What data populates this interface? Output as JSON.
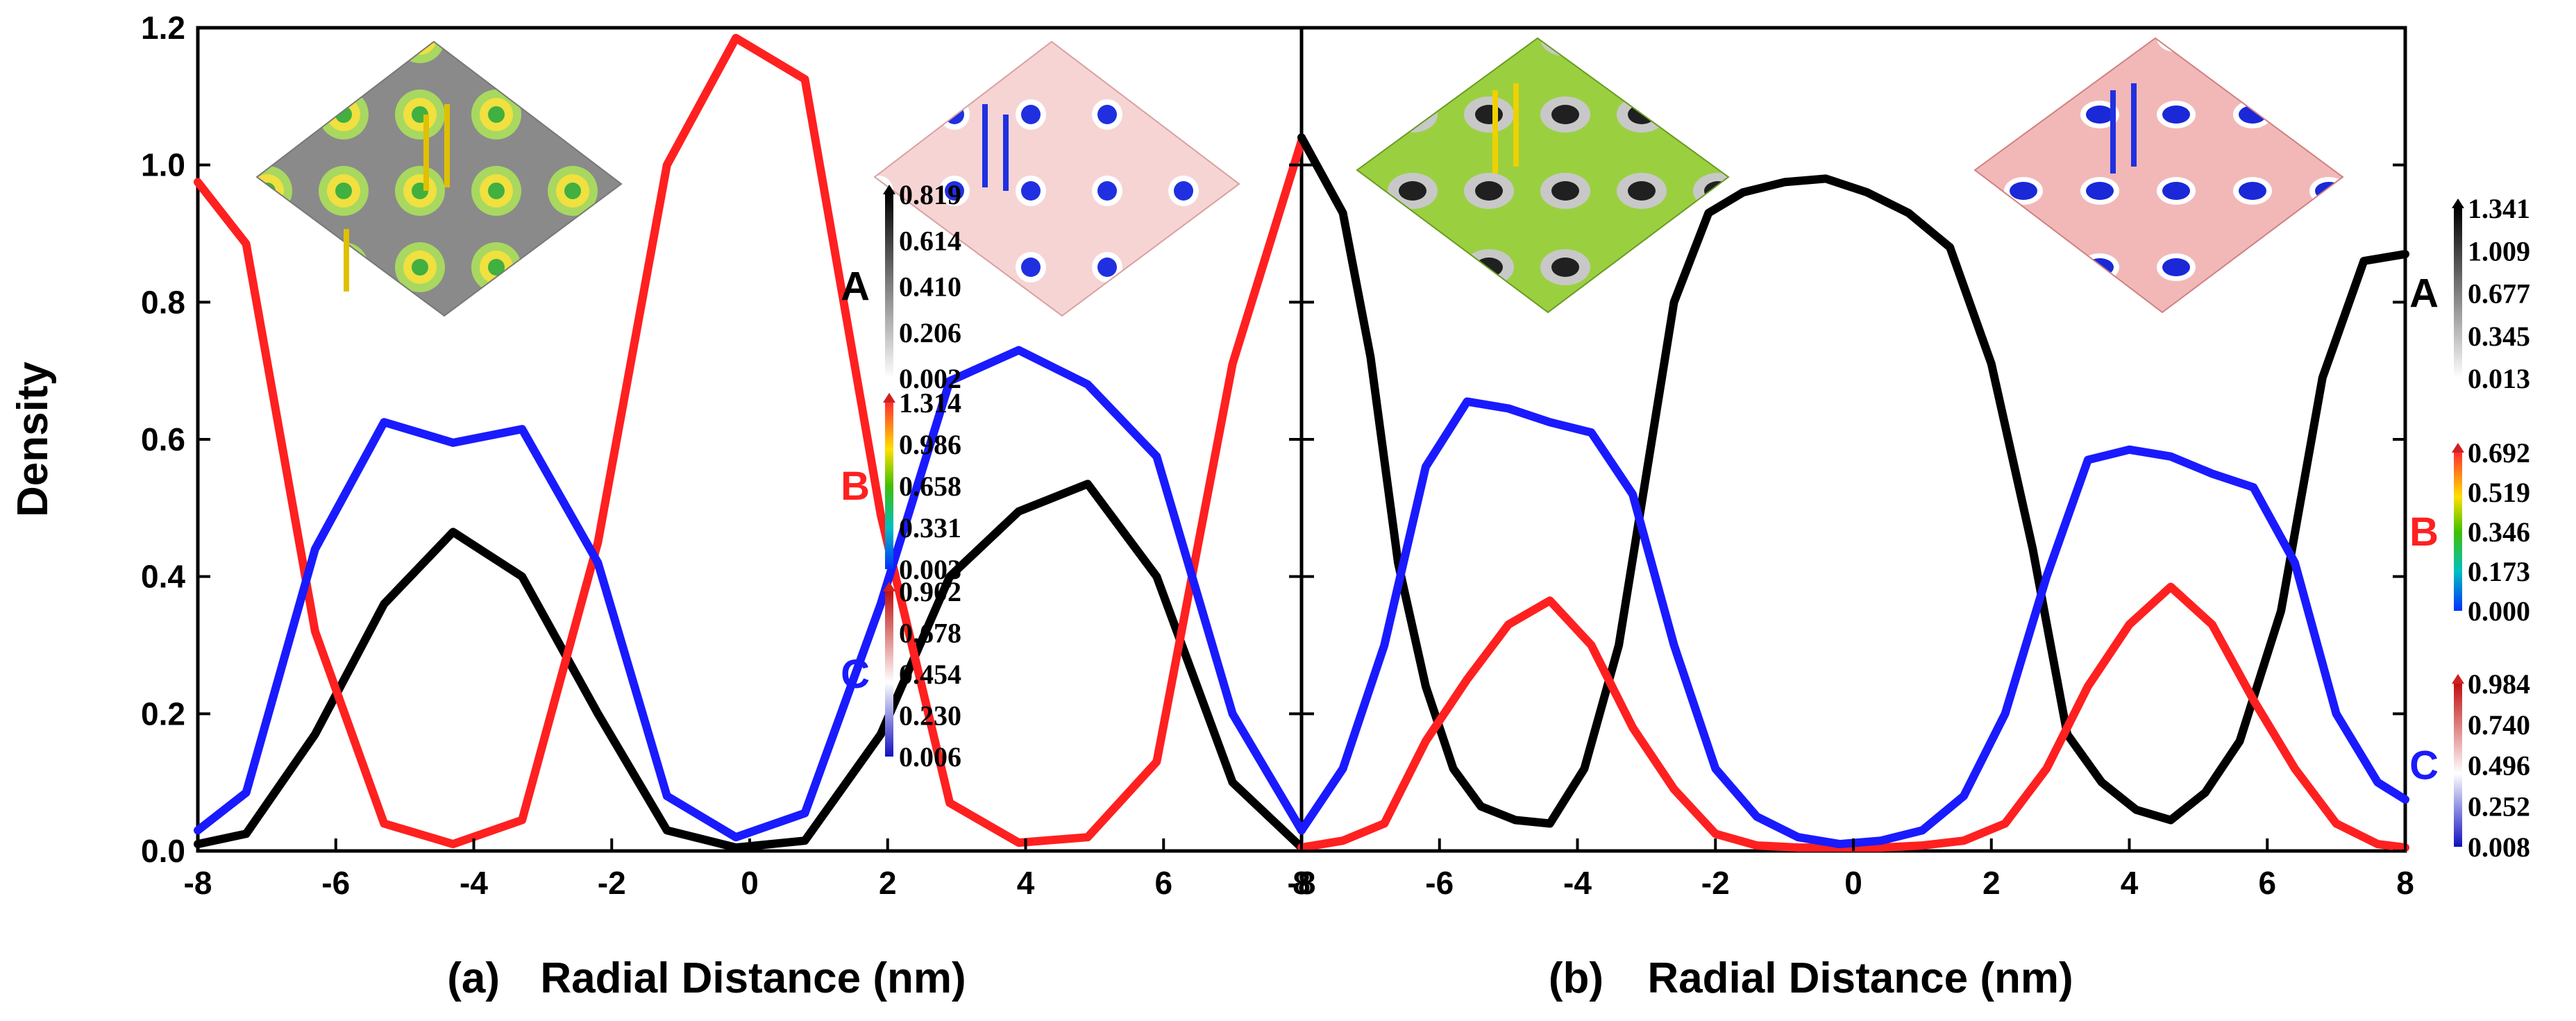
{
  "colors": {
    "A": "#000000",
    "B": "#ff2020",
    "C": "#1a1aff"
  },
  "y_axis_title": "Density",
  "chart_data": [
    {
      "type": "line",
      "panel_label": "(a)",
      "xlabel": "Radial Distance (nm)",
      "ylabel": "Density",
      "xlim": [
        -8,
        8
      ],
      "ylim": [
        0,
        1.2
      ],
      "xticks": [
        -8,
        -6,
        -4,
        -2,
        0,
        2,
        4,
        6,
        8
      ],
      "yticks": [
        "0.0",
        "0.2",
        "0.4",
        "0.6",
        "0.8",
        "1.0",
        "1.2"
      ],
      "series": [
        {
          "name": "A",
          "x": [
            -8,
            -7.3,
            -6.3,
            -5.3,
            -4.3,
            -3.3,
            -2.2,
            -1.2,
            -0.2,
            0.8,
            1.9,
            2.9,
            3.9,
            4.9,
            5.9,
            7.0,
            8.0
          ],
          "y": [
            0.01,
            0.025,
            0.17,
            0.36,
            0.465,
            0.4,
            0.2,
            0.03,
            0.005,
            0.015,
            0.17,
            0.4,
            0.495,
            0.535,
            0.4,
            0.1,
            0.005
          ]
        },
        {
          "name": "B",
          "x": [
            -8,
            -7.3,
            -6.3,
            -5.3,
            -4.3,
            -3.3,
            -2.2,
            -1.2,
            -0.2,
            0.8,
            1.9,
            2.9,
            3.9,
            4.9,
            5.9,
            7.0,
            8.0
          ],
          "y": [
            0.975,
            0.885,
            0.32,
            0.04,
            0.01,
            0.045,
            0.45,
            1.0,
            1.185,
            1.125,
            0.49,
            0.07,
            0.012,
            0.02,
            0.13,
            0.71,
            1.035
          ]
        },
        {
          "name": "C",
          "x": [
            -8,
            -7.3,
            -6.3,
            -5.3,
            -4.3,
            -3.3,
            -2.2,
            -1.2,
            -0.2,
            0.8,
            1.9,
            2.9,
            3.9,
            4.9,
            5.9,
            7.0,
            8.0
          ],
          "y": [
            0.03,
            0.085,
            0.44,
            0.625,
            0.595,
            0.615,
            0.42,
            0.08,
            0.02,
            0.055,
            0.36,
            0.685,
            0.73,
            0.68,
            0.575,
            0.2,
            0.03
          ]
        }
      ],
      "colorbars": [
        {
          "name": "A",
          "ticks": [
            "0.819",
            "0.614",
            "0.410",
            "0.206",
            "0.002"
          ]
        },
        {
          "name": "B",
          "ticks": [
            "1.314",
            "0.986",
            "0.658",
            "0.331",
            "0.003"
          ]
        },
        {
          "name": "C",
          "ticks": [
            "0.902",
            "0.678",
            "0.454",
            "0.230",
            "0.006"
          ]
        }
      ]
    },
    {
      "type": "line",
      "panel_label": "(b)",
      "xlabel": "Radial Distance (nm)",
      "ylabel": "",
      "xlim": [
        -8,
        8
      ],
      "ylim": [
        0,
        1.2
      ],
      "xticks": [
        -8,
        -6,
        -4,
        -2,
        0,
        2,
        4,
        6,
        8
      ],
      "series": [
        {
          "name": "A",
          "x": [
            -8,
            -7.4,
            -7.0,
            -6.6,
            -6.2,
            -5.8,
            -5.4,
            -4.9,
            -4.4,
            -3.9,
            -3.4,
            -3.0,
            -2.6,
            -2.1,
            -1.6,
            -1.0,
            -0.4,
            0.2,
            0.8,
            1.4,
            2.0,
            2.6,
            3.1,
            3.6,
            4.1,
            4.6,
            5.1,
            5.6,
            6.2,
            6.8,
            7.4,
            8.0
          ],
          "y": [
            1.04,
            0.93,
            0.72,
            0.42,
            0.24,
            0.12,
            0.065,
            0.045,
            0.04,
            0.12,
            0.3,
            0.55,
            0.8,
            0.93,
            0.96,
            0.975,
            0.98,
            0.96,
            0.93,
            0.88,
            0.71,
            0.44,
            0.17,
            0.1,
            0.06,
            0.045,
            0.085,
            0.16,
            0.35,
            0.69,
            0.86,
            0.87
          ]
        },
        {
          "name": "B",
          "x": [
            -8,
            -7.4,
            -6.8,
            -6.2,
            -5.6,
            -5.0,
            -4.4,
            -3.8,
            -3.2,
            -2.6,
            -2.0,
            -1.4,
            -0.8,
            -0.2,
            0.4,
            1.0,
            1.6,
            2.2,
            2.8,
            3.4,
            4.0,
            4.6,
            5.2,
            5.8,
            6.4,
            7.0,
            7.6,
            8.0
          ],
          "y": [
            0.005,
            0.015,
            0.04,
            0.16,
            0.25,
            0.33,
            0.365,
            0.3,
            0.18,
            0.09,
            0.025,
            0.008,
            0.005,
            0.005,
            0.005,
            0.008,
            0.015,
            0.04,
            0.12,
            0.24,
            0.33,
            0.385,
            0.33,
            0.22,
            0.12,
            0.04,
            0.01,
            0.005
          ]
        },
        {
          "name": "C",
          "x": [
            -8,
            -7.4,
            -6.8,
            -6.2,
            -5.6,
            -5.0,
            -4.4,
            -3.8,
            -3.2,
            -2.6,
            -2.0,
            -1.4,
            -0.8,
            -0.2,
            0.4,
            1.0,
            1.6,
            2.2,
            2.8,
            3.4,
            4.0,
            4.6,
            5.2,
            5.8,
            6.4,
            7.0,
            7.6,
            8.0
          ],
          "y": [
            0.03,
            0.12,
            0.3,
            0.56,
            0.655,
            0.645,
            0.625,
            0.61,
            0.52,
            0.3,
            0.12,
            0.05,
            0.02,
            0.01,
            0.015,
            0.03,
            0.08,
            0.2,
            0.4,
            0.57,
            0.585,
            0.575,
            0.55,
            0.53,
            0.42,
            0.2,
            0.1,
            0.075
          ]
        }
      ],
      "colorbars": [
        {
          "name": "A",
          "ticks": [
            "1.341",
            "1.009",
            "0.677",
            "0.345",
            "0.013"
          ]
        },
        {
          "name": "B",
          "ticks": [
            "0.692",
            "0.519",
            "0.346",
            "0.173",
            "0.000"
          ]
        },
        {
          "name": "C",
          "ticks": [
            "0.984",
            "0.740",
            "0.496",
            "0.252",
            "0.008"
          ]
        }
      ]
    }
  ]
}
